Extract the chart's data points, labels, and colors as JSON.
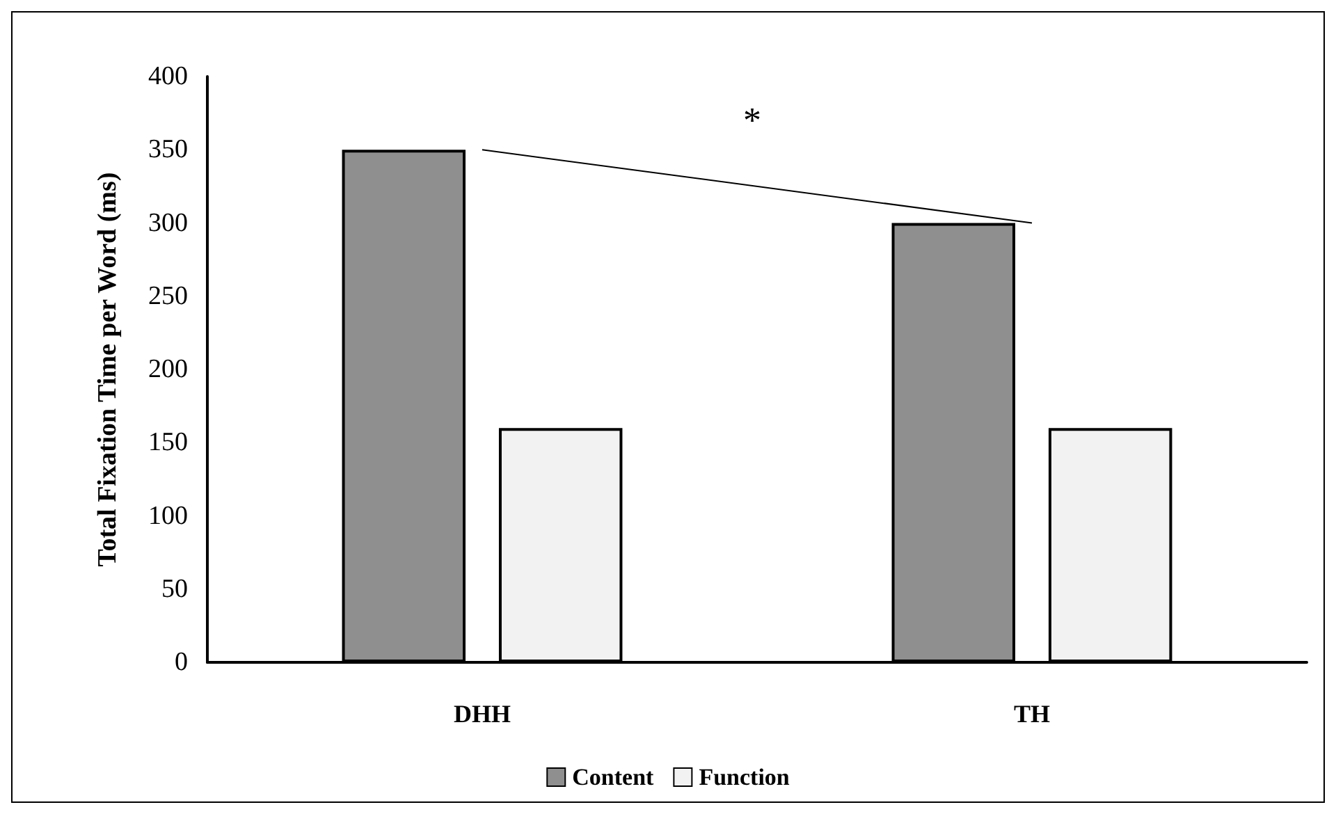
{
  "chart_data": {
    "type": "bar",
    "ylabel": "Total Fixation Time per Word (ms)",
    "categories": [
      "DHH",
      "TH"
    ],
    "series": [
      {
        "name": "Content",
        "color": "#8f8f8f",
        "values": [
          350,
          300
        ]
      },
      {
        "name": "Function",
        "color": "#f2f2f2",
        "values": [
          160,
          160
        ]
      },
      {
        "type": "line",
        "color": "#000000",
        "values": [
          350,
          300
        ]
      }
    ],
    "ylim": [
      0,
      400
    ],
    "yticks": [
      0,
      50,
      100,
      150,
      200,
      250,
      300,
      350,
      400
    ],
    "grid": false,
    "legend": "bottom",
    "annotations": [
      "*"
    ]
  }
}
